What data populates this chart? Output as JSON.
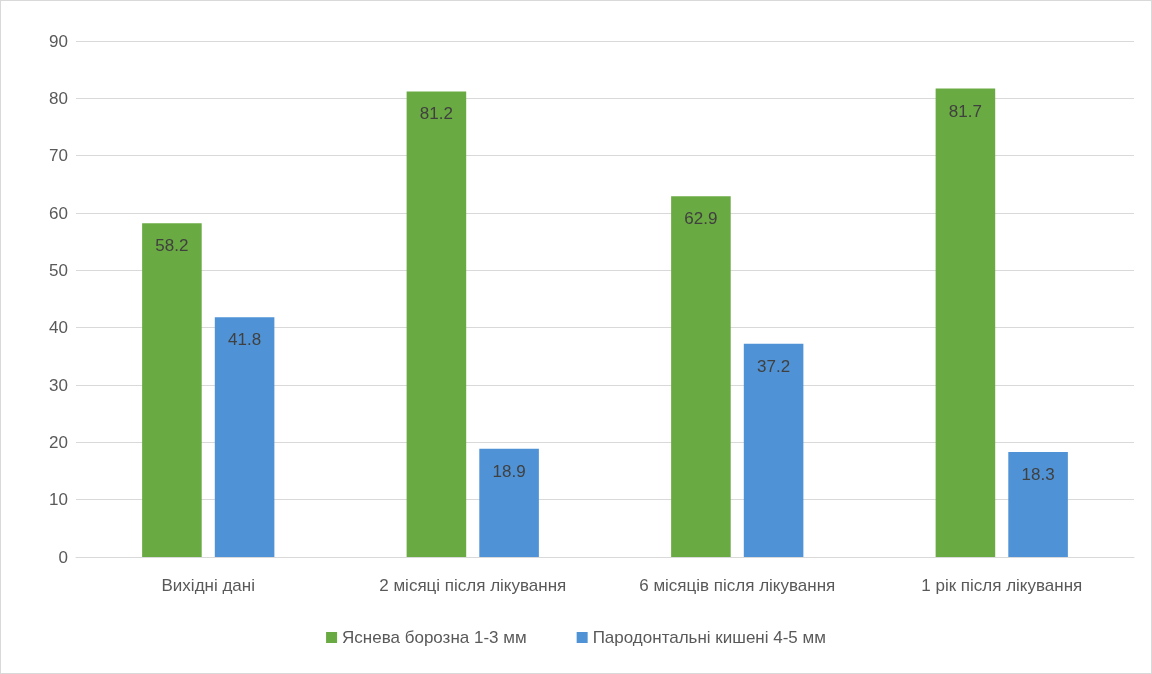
{
  "chart_data": {
    "type": "bar",
    "categories": [
      "Вихідні дані",
      "2 місяці після лікування",
      "6 місяців після лікування",
      "1 рік після лікування"
    ],
    "series": [
      {
        "name": "Яснева борозна 1-3 мм",
        "color": "#6aaa42",
        "values": [
          58.2,
          81.2,
          62.9,
          81.7
        ]
      },
      {
        "name": "Пародонтальні кишені 4-5 мм",
        "color": "#4f93d6",
        "values": [
          41.8,
          18.9,
          37.2,
          18.3
        ]
      }
    ],
    "ylim": [
      0,
      90
    ],
    "yticks": [
      0,
      10,
      20,
      30,
      40,
      50,
      60,
      70,
      80,
      90
    ],
    "grid": "y",
    "legend": "bottom",
    "data_labels": true
  }
}
